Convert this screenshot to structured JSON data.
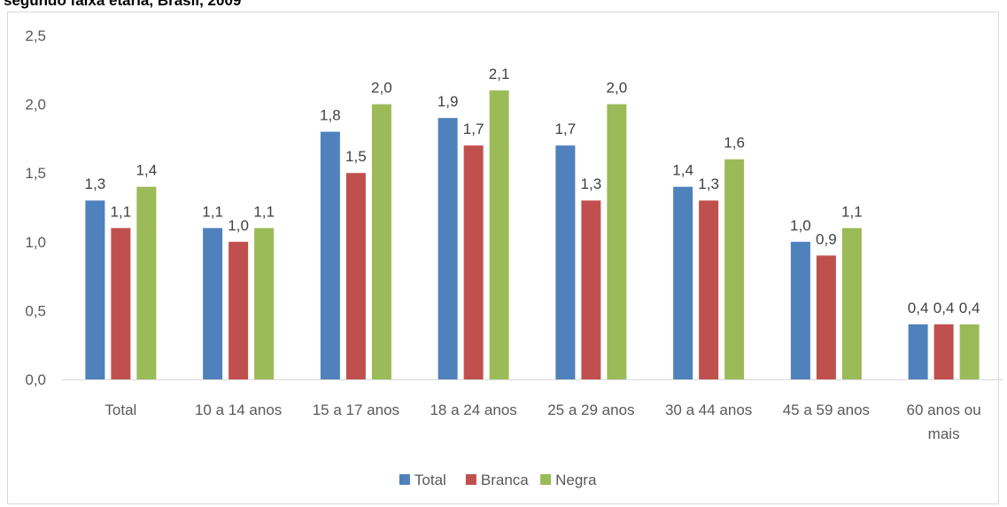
{
  "chart_data": {
    "type": "bar",
    "title": "segundo faixa etária, Brasil, 2009",
    "categories": [
      "Total",
      "10 a 14 anos",
      "15 a 17 anos",
      "18 a 24 anos",
      "25 a 29 anos",
      "30 a 44 anos",
      "45 a 59 anos",
      "60 anos ou mais"
    ],
    "series": [
      {
        "name": "Total",
        "color": "#4f81bd",
        "values": [
          1.3,
          1.1,
          1.8,
          1.9,
          1.7,
          1.4,
          1.0,
          0.4
        ],
        "labels": [
          "1,3",
          "1,1",
          "1,8",
          "1,9",
          "1,7",
          "1,4",
          "1,0",
          "0,4"
        ]
      },
      {
        "name": "Branca",
        "color": "#c0504d",
        "values": [
          1.1,
          1.0,
          1.5,
          1.7,
          1.3,
          1.3,
          0.9,
          0.4
        ],
        "labels": [
          "1,1",
          "1,0",
          "1,5",
          "1,7",
          "1,3",
          "1,3",
          "0,9",
          "0,4"
        ]
      },
      {
        "name": "Negra",
        "color": "#9bbb59",
        "values": [
          1.4,
          1.1,
          2.0,
          2.1,
          2.0,
          1.6,
          1.1,
          0.4
        ],
        "labels": [
          "1,4",
          "1,1",
          "2,0",
          "2,1",
          "2,0",
          "1,6",
          "1,1",
          "0,4"
        ]
      }
    ],
    "ylim": [
      0,
      2.5
    ],
    "yticks": [
      0,
      0.5,
      1.0,
      1.5,
      2.0,
      2.5
    ],
    "ytick_labels": [
      "0,0",
      "0,5",
      "1,0",
      "1,5",
      "2,0",
      "2,5"
    ],
    "grid": false,
    "legend": "bottom"
  }
}
